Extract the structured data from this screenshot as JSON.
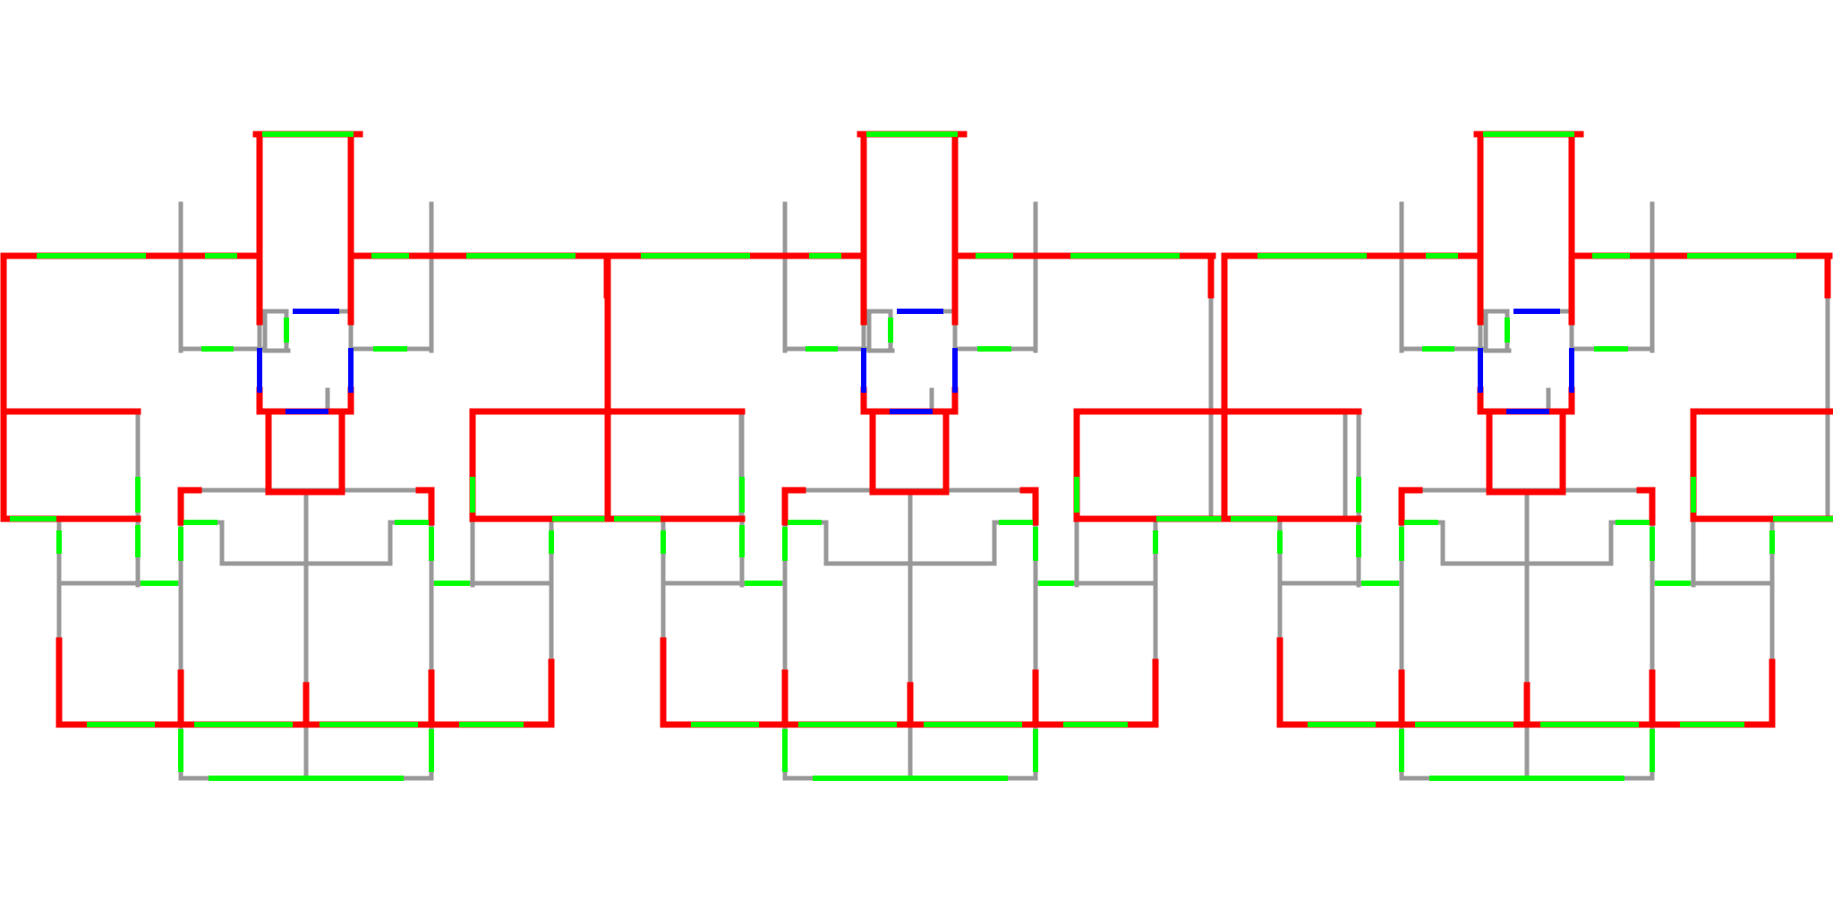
{
  "diagram": {
    "type": "architectural-floor-plan",
    "units": 3,
    "legend": [],
    "colors": {
      "background": "#ffffff",
      "exterior_wall": "#ff0000",
      "interior_wall": "#999999",
      "window": "#00ff00",
      "door": "#0000ff"
    },
    "wall_types": [
      "exterior_wall",
      "interior_wall",
      "window",
      "door"
    ]
  }
}
